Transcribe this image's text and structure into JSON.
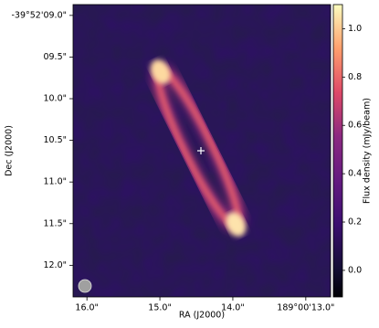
{
  "chart_data": {
    "type": "image",
    "xlabel": "RA (J2000)",
    "ylabel": "Dec (J2000)",
    "colorbar_label": "Flux density (mJy/beam)",
    "colormap": "magma",
    "xlim": [
      16.19,
      12.66
    ],
    "xticks": [
      {
        "value": 16.0,
        "label": "16.0\""
      },
      {
        "value": 15.0,
        "label": "15.0\""
      },
      {
        "value": 14.0,
        "label": "14.0\""
      },
      {
        "value": 13.0,
        "label": "189°00'13.0\""
      }
    ],
    "ylim": [
      12.38,
      8.87
    ],
    "yticks": [
      {
        "value": 9.0,
        "label": "-39°52'09.0\""
      },
      {
        "value": 9.5,
        "label": "09.5\""
      },
      {
        "value": 10.0,
        "label": "10.0\""
      },
      {
        "value": 10.5,
        "label": "10.5\""
      },
      {
        "value": 11.0,
        "label": "11.0\""
      },
      {
        "value": 11.5,
        "label": "11.5\""
      },
      {
        "value": 12.0,
        "label": "12.0\""
      }
    ],
    "clim": [
      -0.11,
      1.1
    ],
    "cticks": [
      {
        "value": 0,
        "label": "0.0"
      },
      0.2,
      0.4,
      0.6,
      0.8,
      {
        "value": 1,
        "label": "1.0"
      }
    ]
  }
}
